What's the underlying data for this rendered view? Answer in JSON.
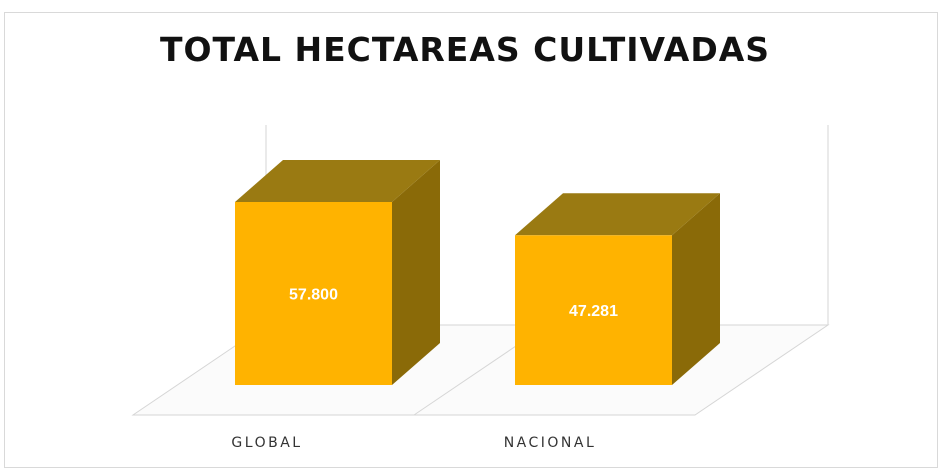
{
  "chart_data": {
    "type": "bar",
    "title": "TOTAL HECTAREAS CULTIVADAS",
    "categories": [
      "GLOBAL",
      "NACIONAL"
    ],
    "values": [
      57800,
      47281
    ],
    "value_labels": [
      "57.800",
      "47.281"
    ],
    "xlabel": "",
    "ylabel": "",
    "ylim": [
      0,
      57800
    ],
    "grid": false,
    "legend": "none",
    "colors": {
      "front": "#FFB300",
      "top": "#9A7A12",
      "side": "#8A6A08"
    }
  }
}
